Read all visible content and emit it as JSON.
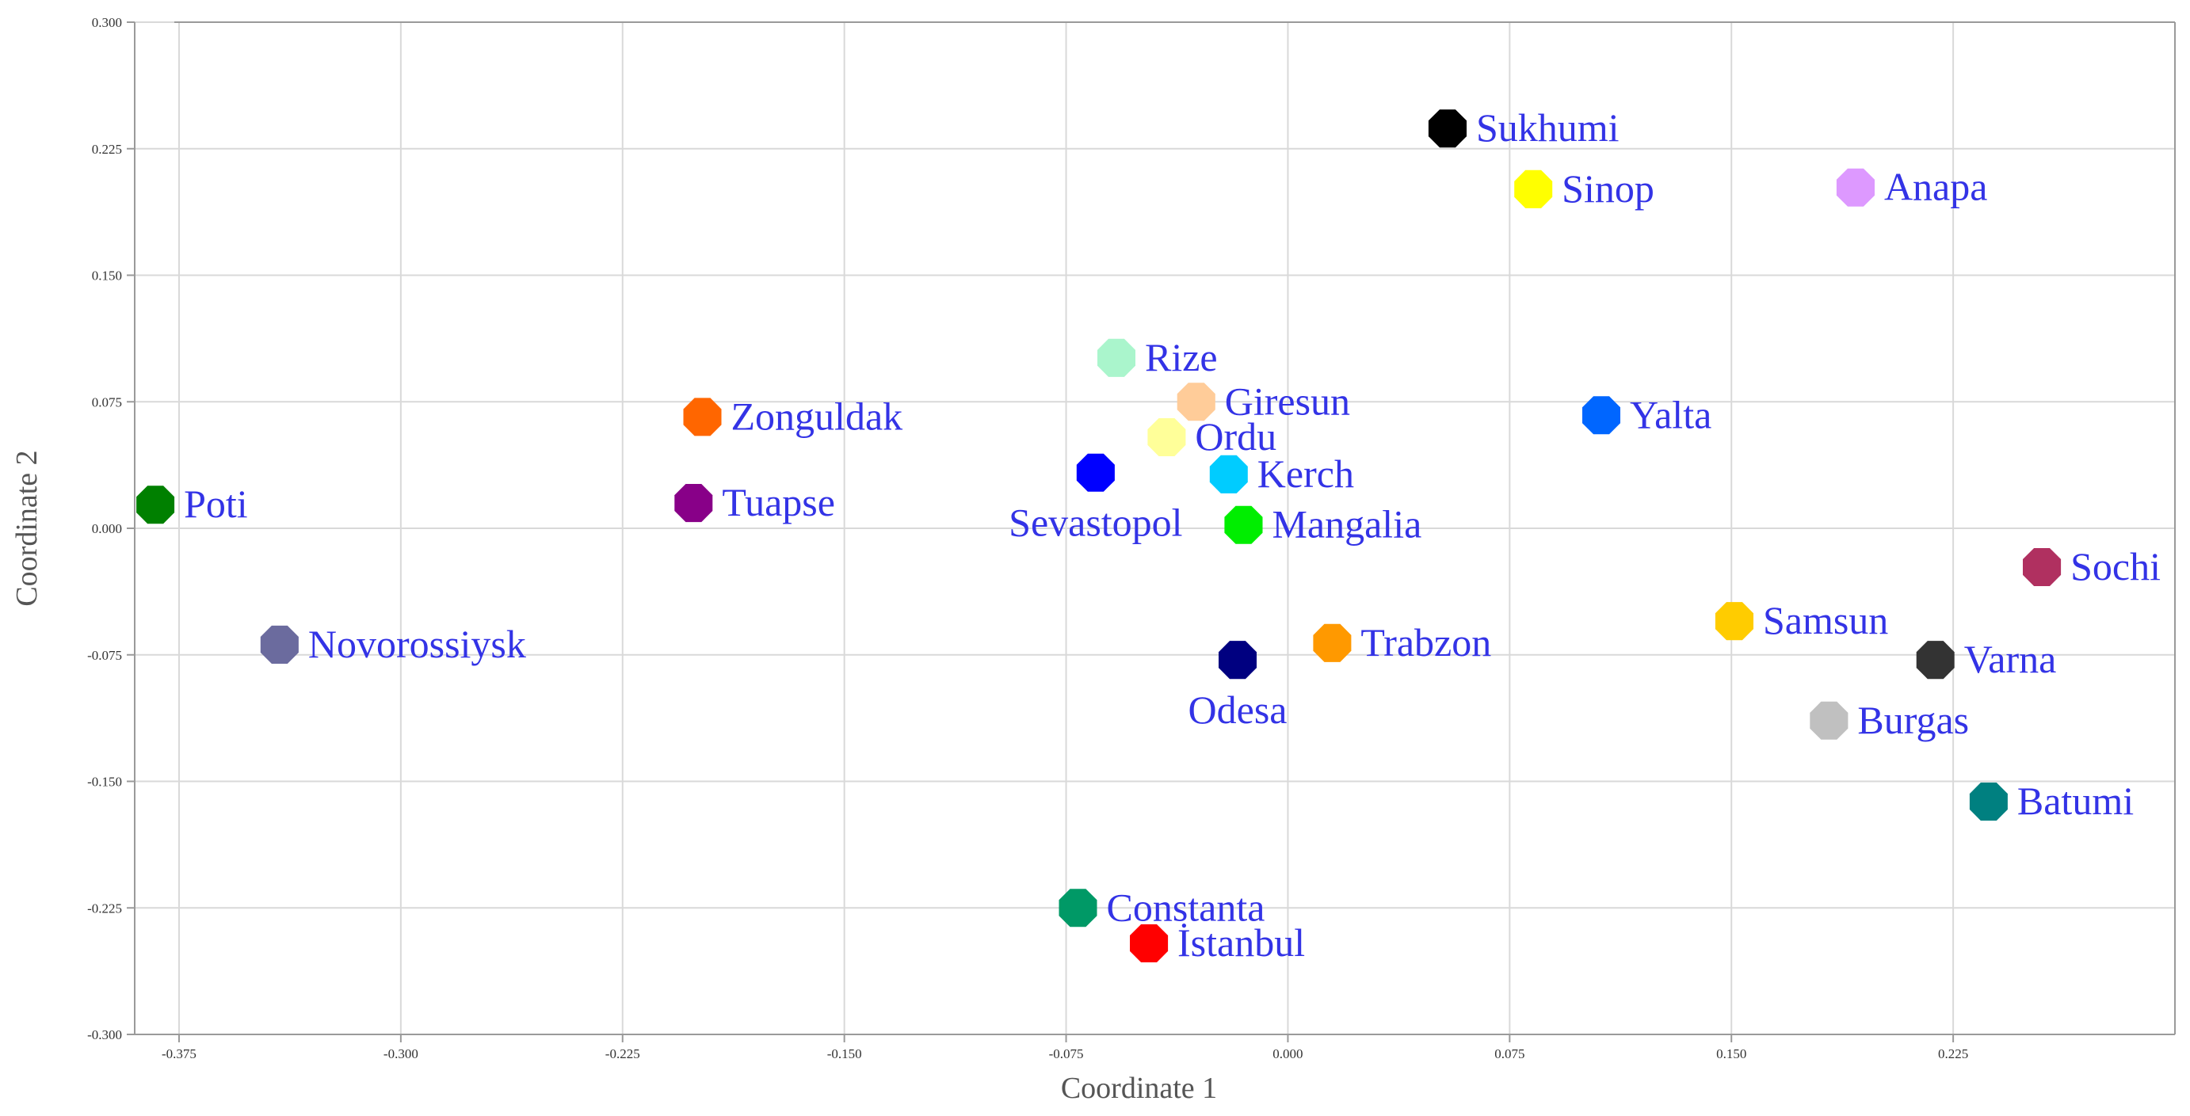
{
  "chart_data": {
    "type": "scatter",
    "xlabel": "Coordinate 1",
    "ylabel": "Coordinate 2",
    "xlim": [
      -0.39,
      0.3
    ],
    "ylim": [
      -0.3,
      0.3
    ],
    "xticks": [
      -0.375,
      -0.3,
      -0.225,
      -0.15,
      -0.075,
      0.0,
      0.075,
      0.15,
      0.225
    ],
    "xtick_labels": [
      "-0.375",
      "-0.300",
      "-0.225",
      "-0.150",
      "-0.075",
      "0.000",
      "0.075",
      "0.150",
      "0.225"
    ],
    "yticks": [
      0.3,
      0.225,
      0.15,
      0.075,
      0.0,
      -0.075,
      -0.15,
      -0.225,
      -0.3
    ],
    "ytick_labels": [
      "0.300",
      "0.225",
      "0.150",
      "0.075",
      "0.000",
      "-0.075",
      "-0.150",
      "-0.225",
      "-0.300"
    ],
    "grid": true,
    "points": [
      {
        "label": "Sukhumi",
        "x": 0.054,
        "y": 0.237,
        "color": "#000000",
        "label_pos": "right"
      },
      {
        "label": "Sinop",
        "x": 0.083,
        "y": 0.201,
        "color": "#ffff00",
        "label_pos": "right"
      },
      {
        "label": "Anapa",
        "x": 0.192,
        "y": 0.202,
        "color": "#dd99ff",
        "label_pos": "right"
      },
      {
        "label": "Rize",
        "x": -0.058,
        "y": 0.101,
        "color": "#aaf5cc",
        "label_pos": "right"
      },
      {
        "label": "Giresun",
        "x": -0.031,
        "y": 0.075,
        "color": "#ffcc99",
        "label_pos": "right"
      },
      {
        "label": "Ordu",
        "x": -0.041,
        "y": 0.054,
        "color": "#ffff99",
        "label_pos": "right"
      },
      {
        "label": "Kerch",
        "x": -0.02,
        "y": 0.032,
        "color": "#00ccff",
        "label_pos": "right"
      },
      {
        "label": "Sevastopol",
        "x": -0.065,
        "y": 0.033,
        "color": "#0000ff",
        "label_pos": "below"
      },
      {
        "label": "Mangalia",
        "x": -0.015,
        "y": 0.002,
        "color": "#00ee00",
        "label_pos": "right"
      },
      {
        "label": "Yalta",
        "x": 0.106,
        "y": 0.067,
        "color": "#0066ff",
        "label_pos": "right"
      },
      {
        "label": "Zonguldak",
        "x": -0.198,
        "y": 0.066,
        "color": "#ff6600",
        "label_pos": "right"
      },
      {
        "label": "Tuapse",
        "x": -0.201,
        "y": 0.015,
        "color": "#880088",
        "label_pos": "right"
      },
      {
        "label": "Poti",
        "x": -0.383,
        "y": 0.014,
        "color": "#008000",
        "label_pos": "right"
      },
      {
        "label": "Novorossiysk",
        "x": -0.341,
        "y": -0.069,
        "color": "#6b6b9e",
        "label_pos": "right"
      },
      {
        "label": "Sochi",
        "x": 0.255,
        "y": -0.023,
        "color": "#b03060",
        "label_pos": "right"
      },
      {
        "label": "Samsun",
        "x": 0.151,
        "y": -0.055,
        "color": "#ffcc00",
        "label_pos": "right"
      },
      {
        "label": "Varna",
        "x": 0.219,
        "y": -0.078,
        "color": "#333333",
        "label_pos": "right"
      },
      {
        "label": "Trabzon",
        "x": 0.015,
        "y": -0.068,
        "color": "#ff9900",
        "label_pos": "right"
      },
      {
        "label": "Odesa",
        "x": -0.017,
        "y": -0.078,
        "color": "#000080",
        "label_pos": "below"
      },
      {
        "label": "Burgas",
        "x": 0.183,
        "y": -0.114,
        "color": "#c0c0c0",
        "label_pos": "right"
      },
      {
        "label": "Batumi",
        "x": 0.237,
        "y": -0.162,
        "color": "#008080",
        "label_pos": "right"
      },
      {
        "label": "Constanta",
        "x": -0.071,
        "y": -0.225,
        "color": "#009966",
        "label_pos": "right"
      },
      {
        "label": "İstanbul",
        "x": -0.047,
        "y": -0.246,
        "color": "#ff0000",
        "label_pos": "right"
      }
    ]
  }
}
